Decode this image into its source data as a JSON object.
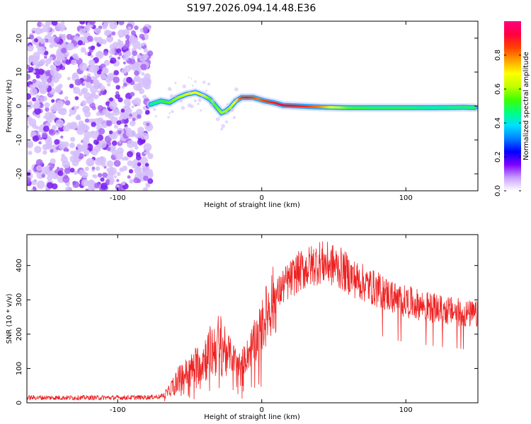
{
  "title": "S197.2026.094.14.48.E36",
  "chart_data": [
    {
      "type": "heatmap",
      "name": "spectrogram",
      "xlabel": "Height of straight line (km)",
      "ylabel": "Frequency (Hz)",
      "xlim": [
        -163,
        150
      ],
      "ylim": [
        -25,
        25
      ],
      "xticks": [
        -100,
        0,
        100
      ],
      "yticks": [
        -20,
        -10,
        0,
        10,
        20
      ],
      "colorbar": {
        "label": "Normalized spectral amplitude",
        "ticks": [
          0.0,
          0.2,
          0.4,
          0.6,
          0.8
        ],
        "range": [
          0,
          1
        ],
        "colors": [
          "#ffffff",
          "#c8a0ff",
          "#8000ff",
          "#0000ff",
          "#0080ff",
          "#00e0ff",
          "#00ff80",
          "#40ff00",
          "#c0ff00",
          "#ffff00",
          "#ffa000",
          "#ff4000",
          "#ff0040",
          "#ff0080"
        ]
      },
      "noise_region_x": [
        -163,
        -77
      ],
      "ridge": {
        "x": [
          -77,
          -70,
          -64,
          -58,
          -52,
          -46,
          -40,
          -36,
          -32,
          -28,
          -25,
          -22,
          -18,
          -14,
          -10,
          -6,
          -2,
          2,
          8,
          15,
          25,
          40,
          60,
          80,
          100,
          120,
          140,
          148
        ],
        "y": [
          0.5,
          1.5,
          1.0,
          2.5,
          3.5,
          4.0,
          3.0,
          2.0,
          0.0,
          -2.0,
          -1.5,
          -0.5,
          1.5,
          2.5,
          2.5,
          2.5,
          2.0,
          1.5,
          1.0,
          0.2,
          0.0,
          -0.3,
          -0.5,
          -0.5,
          -0.5,
          -0.5,
          -0.4,
          -0.5
        ],
        "amplitude": [
          0.45,
          0.5,
          0.55,
          0.6,
          0.65,
          0.7,
          0.65,
          0.55,
          0.55,
          0.6,
          0.6,
          0.6,
          0.7,
          0.85,
          0.9,
          0.85,
          0.8,
          0.85,
          0.88,
          0.92,
          0.9,
          0.8,
          0.55,
          0.5,
          0.5,
          0.45,
          0.5,
          0.5
        ]
      }
    },
    {
      "type": "line",
      "name": "snr",
      "xlabel": "Height of straight line (km)",
      "ylabel": "SNR (10 * v/v)",
      "xlim": [
        -163,
        150
      ],
      "ylim": [
        0,
        490
      ],
      "xticks": [
        -100,
        0,
        100
      ],
      "yticks": [
        0,
        100,
        200,
        300,
        400
      ],
      "color": "#ee2222",
      "envelope": {
        "x": [
          -163,
          -140,
          -120,
          -100,
          -80,
          -70,
          -65,
          -60,
          -55,
          -50,
          -45,
          -40,
          -35,
          -30,
          -25,
          -20,
          -15,
          -10,
          -5,
          0,
          5,
          10,
          15,
          20,
          25,
          30,
          35,
          40,
          45,
          50,
          55,
          60,
          65,
          70,
          75,
          80,
          85,
          90,
          95,
          100,
          105,
          110,
          115,
          120,
          125,
          130,
          135,
          140,
          145,
          150
        ],
        "y": [
          15,
          15,
          15,
          15,
          16,
          18,
          30,
          60,
          80,
          90,
          110,
          130,
          150,
          170,
          160,
          130,
          110,
          140,
          180,
          220,
          280,
          310,
          340,
          360,
          380,
          390,
          400,
          410,
          405,
          400,
          390,
          375,
          360,
          350,
          340,
          330,
          320,
          310,
          300,
          295,
          290,
          285,
          280,
          275,
          270,
          268,
          265,
          260,
          258,
          256
        ]
      }
    }
  ]
}
